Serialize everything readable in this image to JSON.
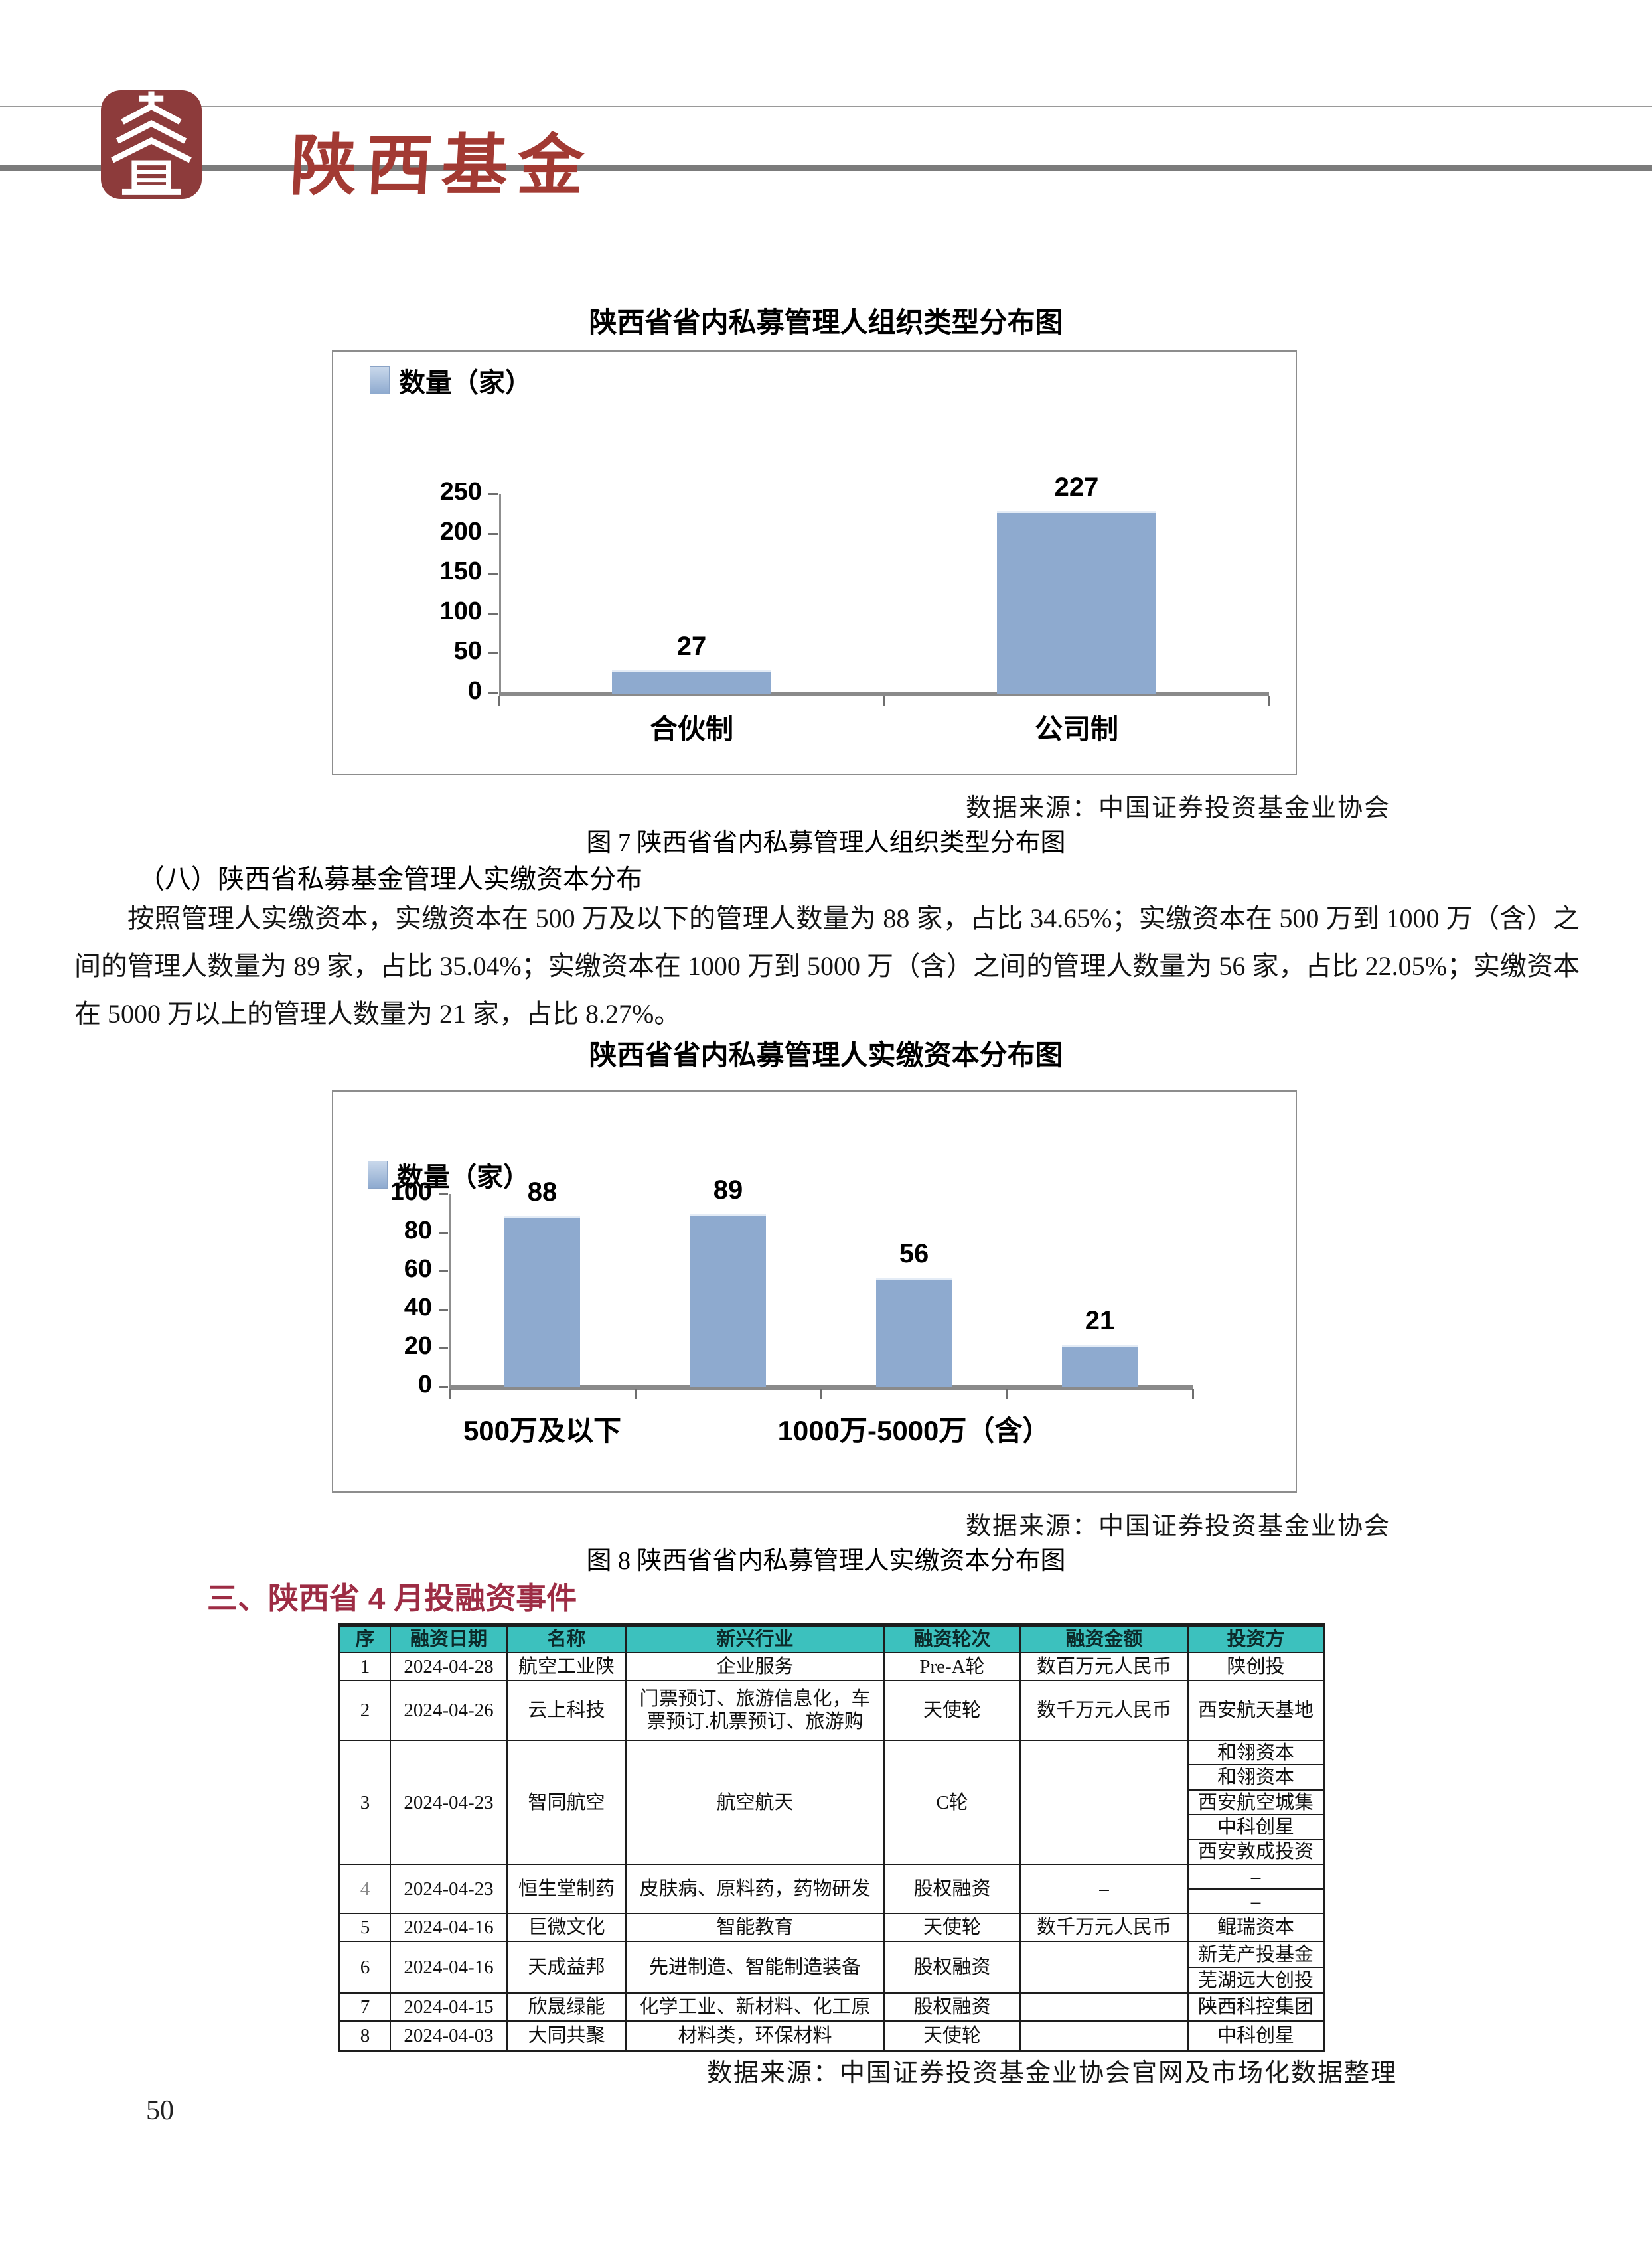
{
  "header": {
    "logo_icon": "pagoda-seal-logo",
    "brand": "陕西基金"
  },
  "colors": {
    "bar": "#8EAACF",
    "table_header_bg": "#3CC1BE",
    "section_heading_red": "#9D2C44",
    "brand_red": "#A23A33",
    "logo_red": "#8D3B3B"
  },
  "chart_data": [
    {
      "type": "bar",
      "title": "陕西省省内私募管理人组织类型分布图",
      "legend": "数量（家）",
      "categories": [
        "合伙制",
        "公司制"
      ],
      "values": [
        27,
        227
      ],
      "data_labels": [
        "27",
        "227"
      ],
      "ylim": [
        0,
        250
      ],
      "ytick_step": 50,
      "grid": false,
      "legend_position": "top-left",
      "source": "数据来源：中国证券投资基金业协会"
    },
    {
      "type": "bar",
      "title": "陕西省省内私募管理人实缴资本分布图",
      "legend": "数量（家）",
      "categories": [
        "500万及以下",
        "",
        "1000万-5000万（含）",
        ""
      ],
      "values": [
        88,
        89,
        56,
        21
      ],
      "data_labels": [
        "88",
        "89",
        "56",
        "21"
      ],
      "ylim": [
        0,
        100
      ],
      "ytick_step": 20,
      "grid": false,
      "legend_position": "top-left",
      "source": "数据来源：中国证券投资基金业协会"
    }
  ],
  "figure_captions": {
    "fig7": "图 7 陕西省省内私募管理人组织类型分布图",
    "fig8": "图 8 陕西省省内私募管理人实缴资本分布图"
  },
  "section_capital": {
    "heading": "（八）陕西省私募基金管理人实缴资本分布",
    "paragraph": "按照管理人实缴资本，实缴资本在 500 万及以下的管理人数量为 88 家，占比 34.65%；实缴资本在 500 万到 1000 万（含）之间的管理人数量为 89 家，占比 35.04%；实缴资本在 1000 万到 5000 万（含）之间的管理人数量为 56 家，占比 22.05%；实缴资本在 5000 万以上的管理人数量为 21 家，占比 8.27%。"
  },
  "section_investment": {
    "heading": "三、陕西省 4 月投融资事件"
  },
  "table": {
    "headers": [
      "序",
      "融资日期",
      "名称",
      "新兴行业",
      "融资轮次",
      "融资金额",
      "投资方"
    ],
    "rows": [
      {
        "no": "1",
        "date": "2024-04-28",
        "name": "航空工业陕",
        "industry": "企业服务",
        "round": "Pre-A轮",
        "amount": "数百万元人民币",
        "investors": [
          "陕创投"
        ]
      },
      {
        "no": "2",
        "date": "2024-04-26",
        "name": "云上科技",
        "industry": "门票预订、旅游信息化，车票预订.机票预订、旅游购",
        "round": "天使轮",
        "amount": "数千万元人民币",
        "investors": [
          "西安航天基地"
        ]
      },
      {
        "no": "3",
        "date": "2024-04-23",
        "name": "智同航空",
        "industry": "航空航天",
        "round": "C轮",
        "amount": "",
        "investors": [
          "和翎资本",
          "和翎资本",
          "西安航空城集",
          "中科创星",
          "西安敦成投资"
        ]
      },
      {
        "no": "4",
        "date": "2024-04-23",
        "name": "恒生堂制药",
        "industry": "皮肤病、原料药，药物研发",
        "round": "股权融资",
        "amount": "–",
        "investors": [
          "–",
          "–"
        ]
      },
      {
        "no": "5",
        "date": "2024-04-16",
        "name": "巨微文化",
        "industry": "智能教育",
        "round": "天使轮",
        "amount": "数千万元人民币",
        "investors": [
          "鲲瑞资本"
        ]
      },
      {
        "no": "6",
        "date": "2024-04-16",
        "name": "天成益邦",
        "industry": "先进制造、智能制造装备",
        "round": "股权融资",
        "amount": "",
        "investors": [
          "新芜产投基金",
          "芜湖远大创投"
        ]
      },
      {
        "no": "7",
        "date": "2024-04-15",
        "name": "欣晟绿能",
        "industry": "化学工业、新材料、化工原",
        "round": "股权融资",
        "amount": "",
        "investors": [
          "陕西科控集团"
        ]
      },
      {
        "no": "8",
        "date": "2024-04-03",
        "name": "大同共聚",
        "industry": "材料类，环保材料",
        "round": "天使轮",
        "amount": "",
        "investors": [
          "中科创星"
        ]
      }
    ]
  },
  "footer_source": "数据来源：中国证券投资基金业协会官网及市场化数据整理",
  "page_number": "50"
}
